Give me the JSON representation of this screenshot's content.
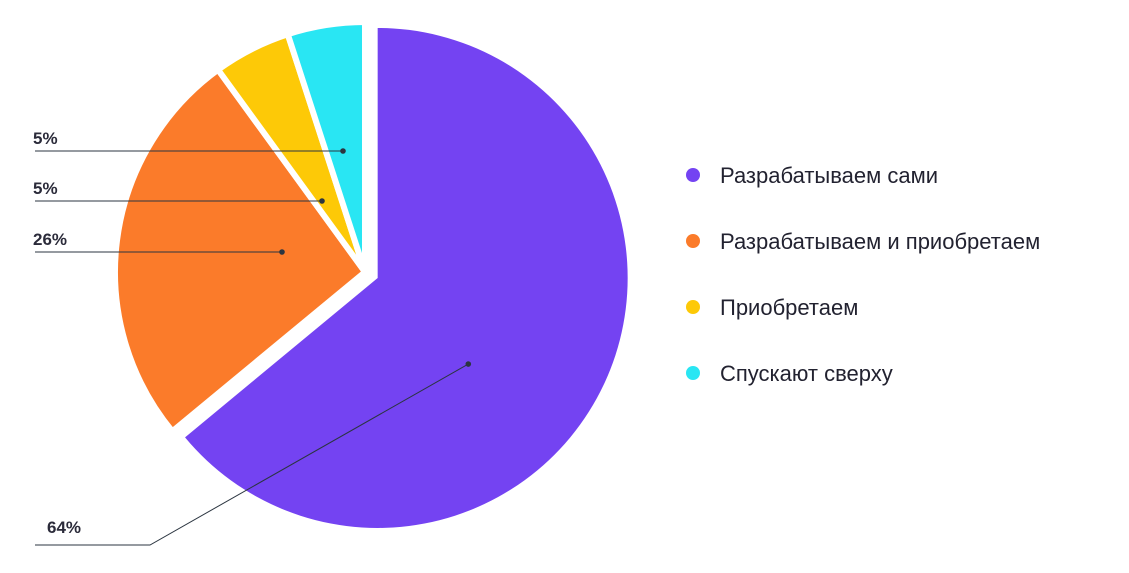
{
  "chart_data": {
    "type": "pie",
    "title": "",
    "slices": [
      {
        "label": "Разрабатываем сами",
        "value": 64,
        "display": "64%",
        "color": "#7443f2"
      },
      {
        "label": "Разрабатываем и приобретаем",
        "value": 26,
        "display": "26%",
        "color": "#fb7b2a"
      },
      {
        "label": "Приобретаем",
        "value": 5,
        "display": "5%",
        "color": "#fdc907"
      },
      {
        "label": "Спускают сверху",
        "value": 5,
        "display": "5%",
        "color": "#29e6f3"
      }
    ],
    "exploded_slice": "Разрабатываем сами",
    "start": "12 o'clock",
    "direction": "clockwise",
    "legend_position": "right",
    "data_labels": "outside-left with leader lines"
  }
}
